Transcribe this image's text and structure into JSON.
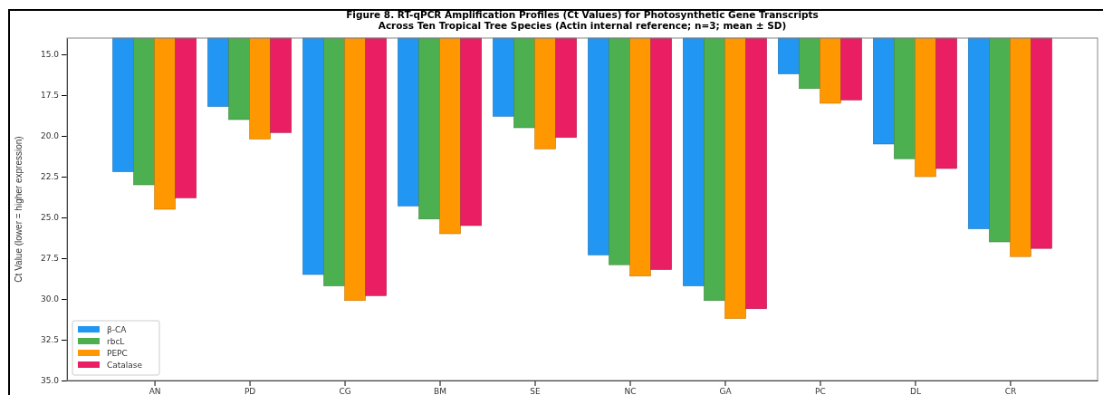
{
  "chart_data": {
    "type": "bar",
    "title": "Figure 8. RT-qPCR Amplification Profiles (Ct Values) for Photosynthetic Gene Transcripts\nAcross Ten Tropical Tree Species (Actin internal reference; n=3; mean ± SD)",
    "ylabel": "Ct Value (lower = higher expression)",
    "categories": [
      "AN",
      "PD",
      "CG",
      "BM",
      "SE",
      "NC",
      "GA",
      "PC",
      "DL",
      "CR"
    ],
    "series": [
      {
        "name": "β-CA",
        "color": "#2196f3",
        "values": [
          22.2,
          18.2,
          28.5,
          24.3,
          18.8,
          27.3,
          29.2,
          16.2,
          20.5,
          25.7
        ]
      },
      {
        "name": "rbcL",
        "color": "#4caf50",
        "values": [
          23.0,
          19.0,
          29.2,
          25.1,
          19.5,
          27.9,
          30.1,
          17.1,
          21.4,
          26.5
        ]
      },
      {
        "name": "PEPC",
        "color": "#ff9800",
        "values": [
          24.5,
          20.2,
          30.1,
          26.0,
          20.8,
          28.6,
          31.2,
          18.0,
          22.5,
          27.4
        ]
      },
      {
        "name": "Catalase",
        "color": "#e91e63",
        "values": [
          23.8,
          19.8,
          29.8,
          25.5,
          20.1,
          28.2,
          30.6,
          17.8,
          22.0,
          26.9
        ]
      }
    ],
    "ylim": [
      35,
      14
    ],
    "yticks": [
      {
        "value": 15,
        "label": "15.0"
      },
      {
        "value": 17.5,
        "label": "17.5"
      },
      {
        "value": 20,
        "label": "20.0"
      },
      {
        "value": 22.5,
        "label": "22.5"
      },
      {
        "value": 25,
        "label": "25.0"
      },
      {
        "value": 27.5,
        "label": "27.5"
      },
      {
        "value": 30,
        "label": "30.0"
      },
      {
        "value": 32.5,
        "label": "32.5"
      },
      {
        "value": 35,
        "label": "35.0"
      }
    ],
    "legend": "bottom left",
    "grid": false
  }
}
